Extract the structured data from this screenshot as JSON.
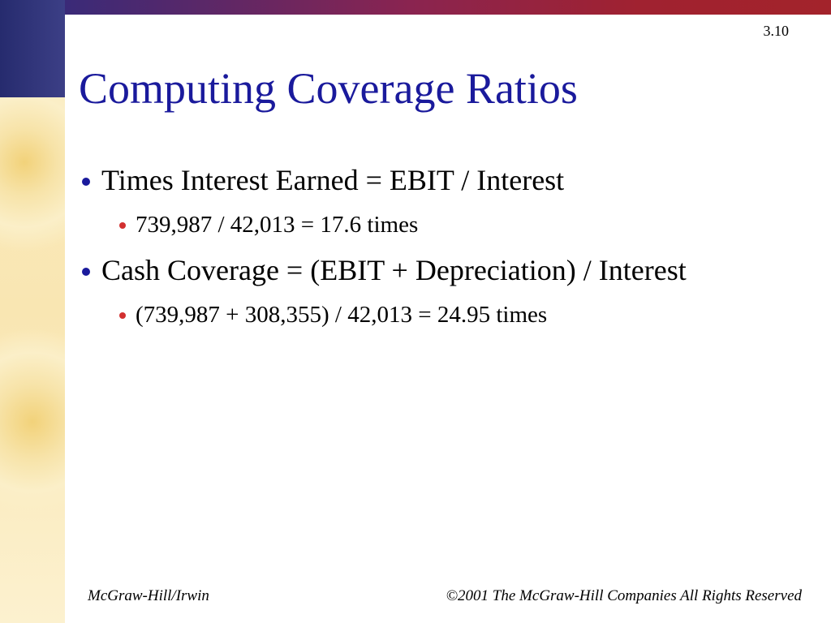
{
  "slide_number": "3.10",
  "title": "Computing Coverage Ratios",
  "bullets": [
    {
      "text": "Times Interest Earned = EBIT / Interest",
      "subitems": [
        "739,987 / 42,013 = 17.6 times"
      ]
    },
    {
      "text": "Cash Coverage = (EBIT + Depreciation) / Interest",
      "subitems": [
        "(739,987 + 308,355) / 42,013 = 24.95 times"
      ]
    }
  ],
  "footer": {
    "left": "McGraw-Hill/Irwin",
    "right": "©2001 The McGraw-Hill Companies All Rights Reserved"
  }
}
